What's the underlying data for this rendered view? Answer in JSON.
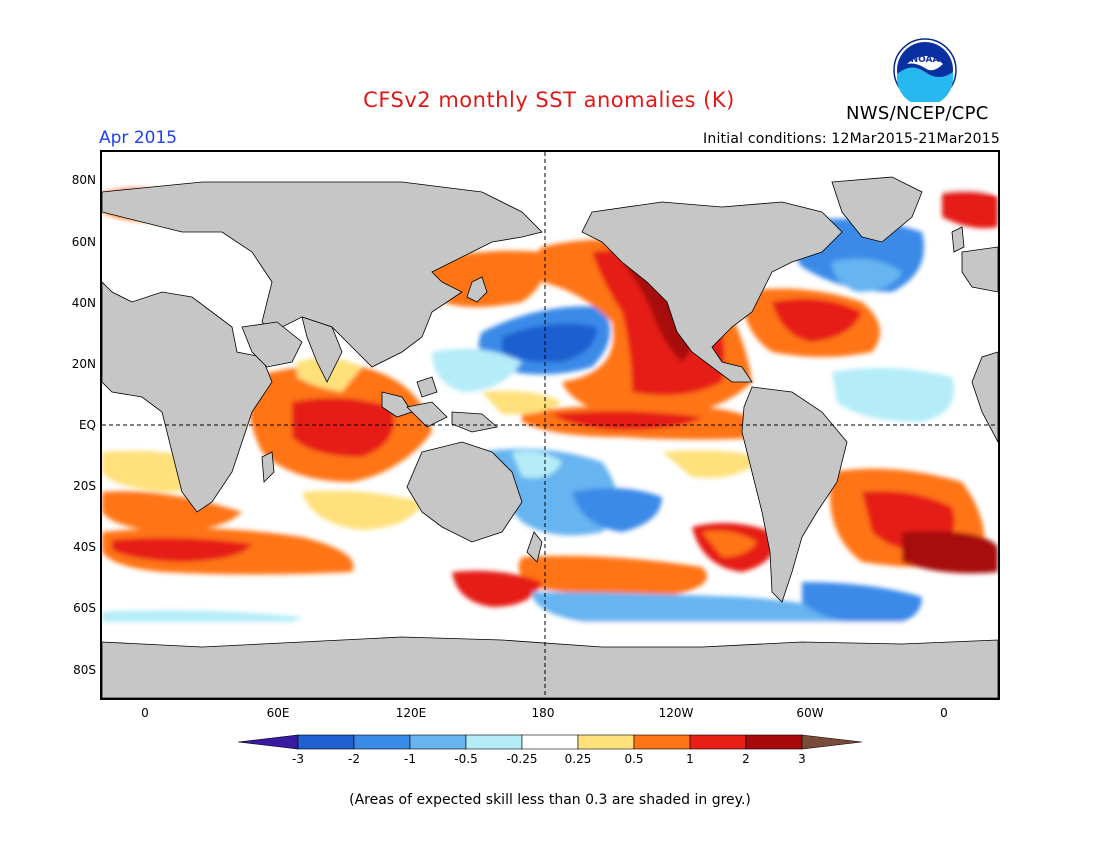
{
  "title": "CFSv2 monthly SST anomalies (K)",
  "agency": "NWS/NCEP/CPC",
  "logo_text": "NOAA",
  "date_label": "Apr 2015",
  "initial_conditions": "Initial conditions: 12Mar2015-21Mar2015",
  "y_ticks": [
    "80N",
    "60N",
    "40N",
    "20N",
    "EQ",
    "20S",
    "40S",
    "60S",
    "80S"
  ],
  "x_ticks": [
    "0",
    "60E",
    "120E",
    "180",
    "120W",
    "60W",
    "0"
  ],
  "colorbar": {
    "labels": [
      "-3",
      "-2",
      "-1",
      "-0.5",
      "-0.25",
      "0.25",
      "0.5",
      "1",
      "2",
      "3"
    ],
    "colors": [
      "#3a1aa0",
      "#1f5fd0",
      "#3a8ae8",
      "#66b4f0",
      "#b4ecf8",
      "#ffffff",
      "#ffe07a",
      "#ff7414",
      "#e61e14",
      "#a80a0a",
      "#7a4a3a"
    ]
  },
  "land_color": "#c6c6c6",
  "footnote": "(Areas of expected skill less than 0.3 are shaded in grey.)"
}
